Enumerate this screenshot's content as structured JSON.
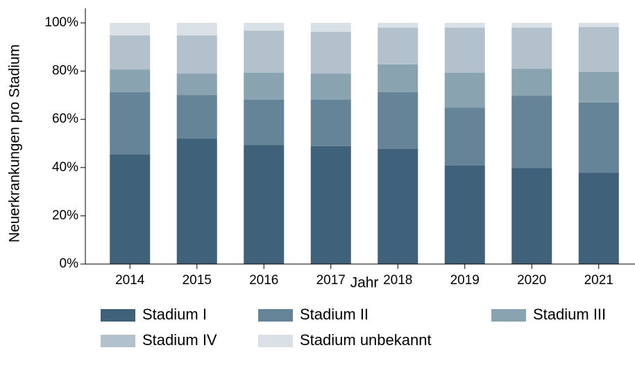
{
  "chart_data": {
    "type": "stacked_bar",
    "x_label": "Jahr",
    "y_label": "Neuerkrankungen pro Stadium",
    "categories": [
      "2014",
      "2015",
      "2016",
      "2017",
      "2018",
      "2019",
      "2020",
      "2021"
    ],
    "series": [
      {
        "name": "Stadium I",
        "color": "#3f6179",
        "values": [
          45.4,
          52.0,
          49.4,
          48.9,
          47.7,
          40.8,
          39.9,
          37.9
        ]
      },
      {
        "name": "Stadium II",
        "color": "#658497",
        "values": [
          25.9,
          18.1,
          18.7,
          19.2,
          23.6,
          24.1,
          29.9,
          29.1
        ]
      },
      {
        "name": "Stadium III",
        "color": "#8aa3b1",
        "values": [
          9.4,
          8.9,
          11.2,
          10.9,
          11.5,
          14.4,
          11.2,
          12.6
        ]
      },
      {
        "name": "Stadium IV",
        "color": "#b2c1cb",
        "values": [
          14.1,
          15.8,
          17.5,
          17.3,
          15.2,
          18.7,
          17.0,
          18.7
        ]
      },
      {
        "name": "Stadium unbekannt",
        "color": "#d9e0e6",
        "values": [
          5.2,
          5.2,
          3.2,
          3.7,
          2.0,
          2.0,
          2.0,
          1.7
        ]
      }
    ],
    "ylim": [
      0,
      100
    ],
    "yticks": [
      {
        "value": 0,
        "label": "0%"
      },
      {
        "value": 20,
        "label": "20%"
      },
      {
        "value": 40,
        "label": "40%"
      },
      {
        "value": 60,
        "label": "60%"
      },
      {
        "value": 80,
        "label": "80%"
      },
      {
        "value": 100,
        "label": "100%"
      }
    ],
    "legend": "bottom"
  }
}
